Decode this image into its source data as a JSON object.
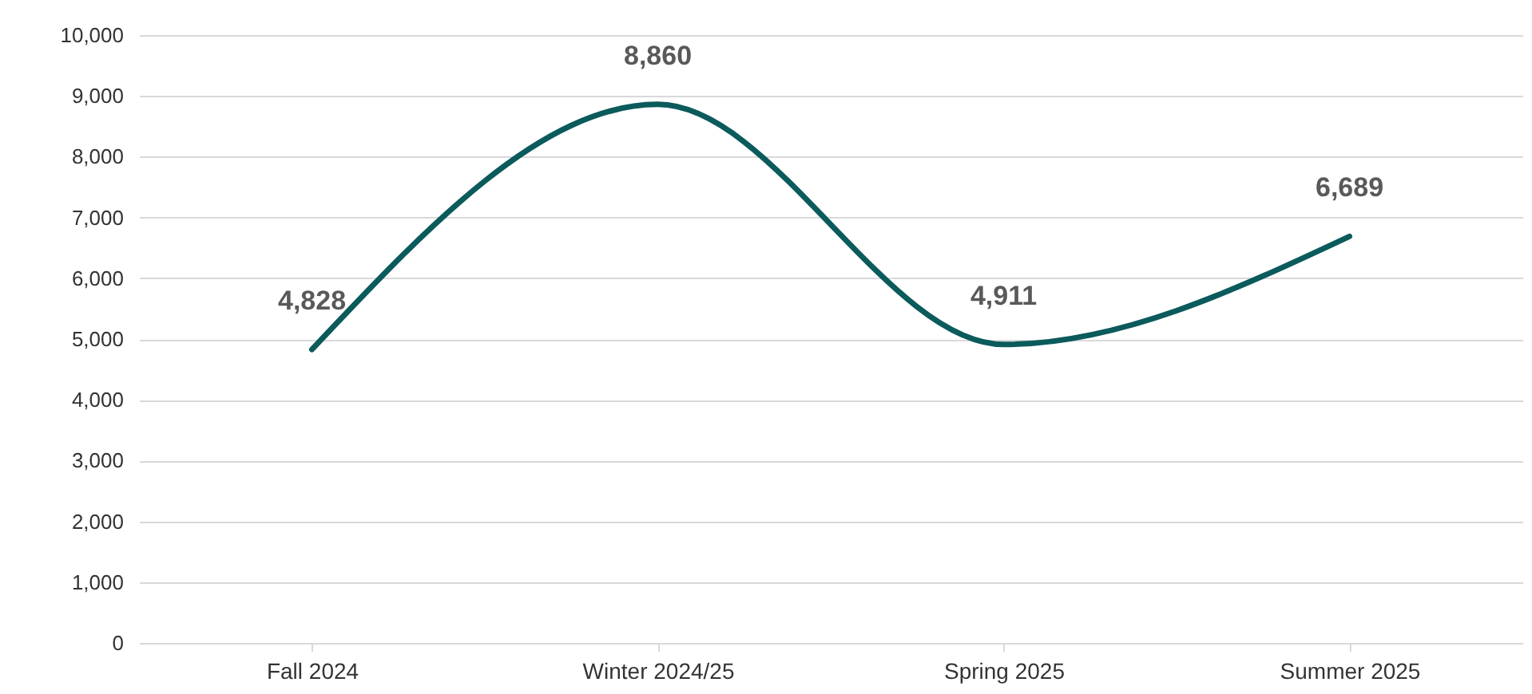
{
  "chart_data": {
    "type": "line",
    "categories": [
      "Fall 2024",
      "Winter 2024/25",
      "Spring 2025",
      "Summer 2025"
    ],
    "series": [
      {
        "color": "#0b5a5c",
        "values": [
          4828,
          8860,
          4911,
          6689
        ]
      }
    ],
    "ylim": [
      0,
      10000
    ],
    "yticks": [
      {
        "value": 0,
        "label": "0"
      },
      {
        "value": 1000,
        "label": "1,000"
      },
      {
        "value": 2000,
        "label": "2,000"
      },
      {
        "value": 3000,
        "label": "3,000"
      },
      {
        "value": 4000,
        "label": "4,000"
      },
      {
        "value": 5000,
        "label": "5,000"
      },
      {
        "value": 6000,
        "label": "6,000"
      },
      {
        "value": 7000,
        "label": "7,000"
      },
      {
        "value": 8000,
        "label": "8,000"
      },
      {
        "value": 9000,
        "label": "9,000"
      },
      {
        "value": 10000,
        "label": "10,000"
      }
    ],
    "value_labels": [
      "4,828",
      "8,860",
      "4,911",
      "6,689"
    ],
    "grid": "y",
    "marker": "none",
    "line_style": "solid"
  }
}
